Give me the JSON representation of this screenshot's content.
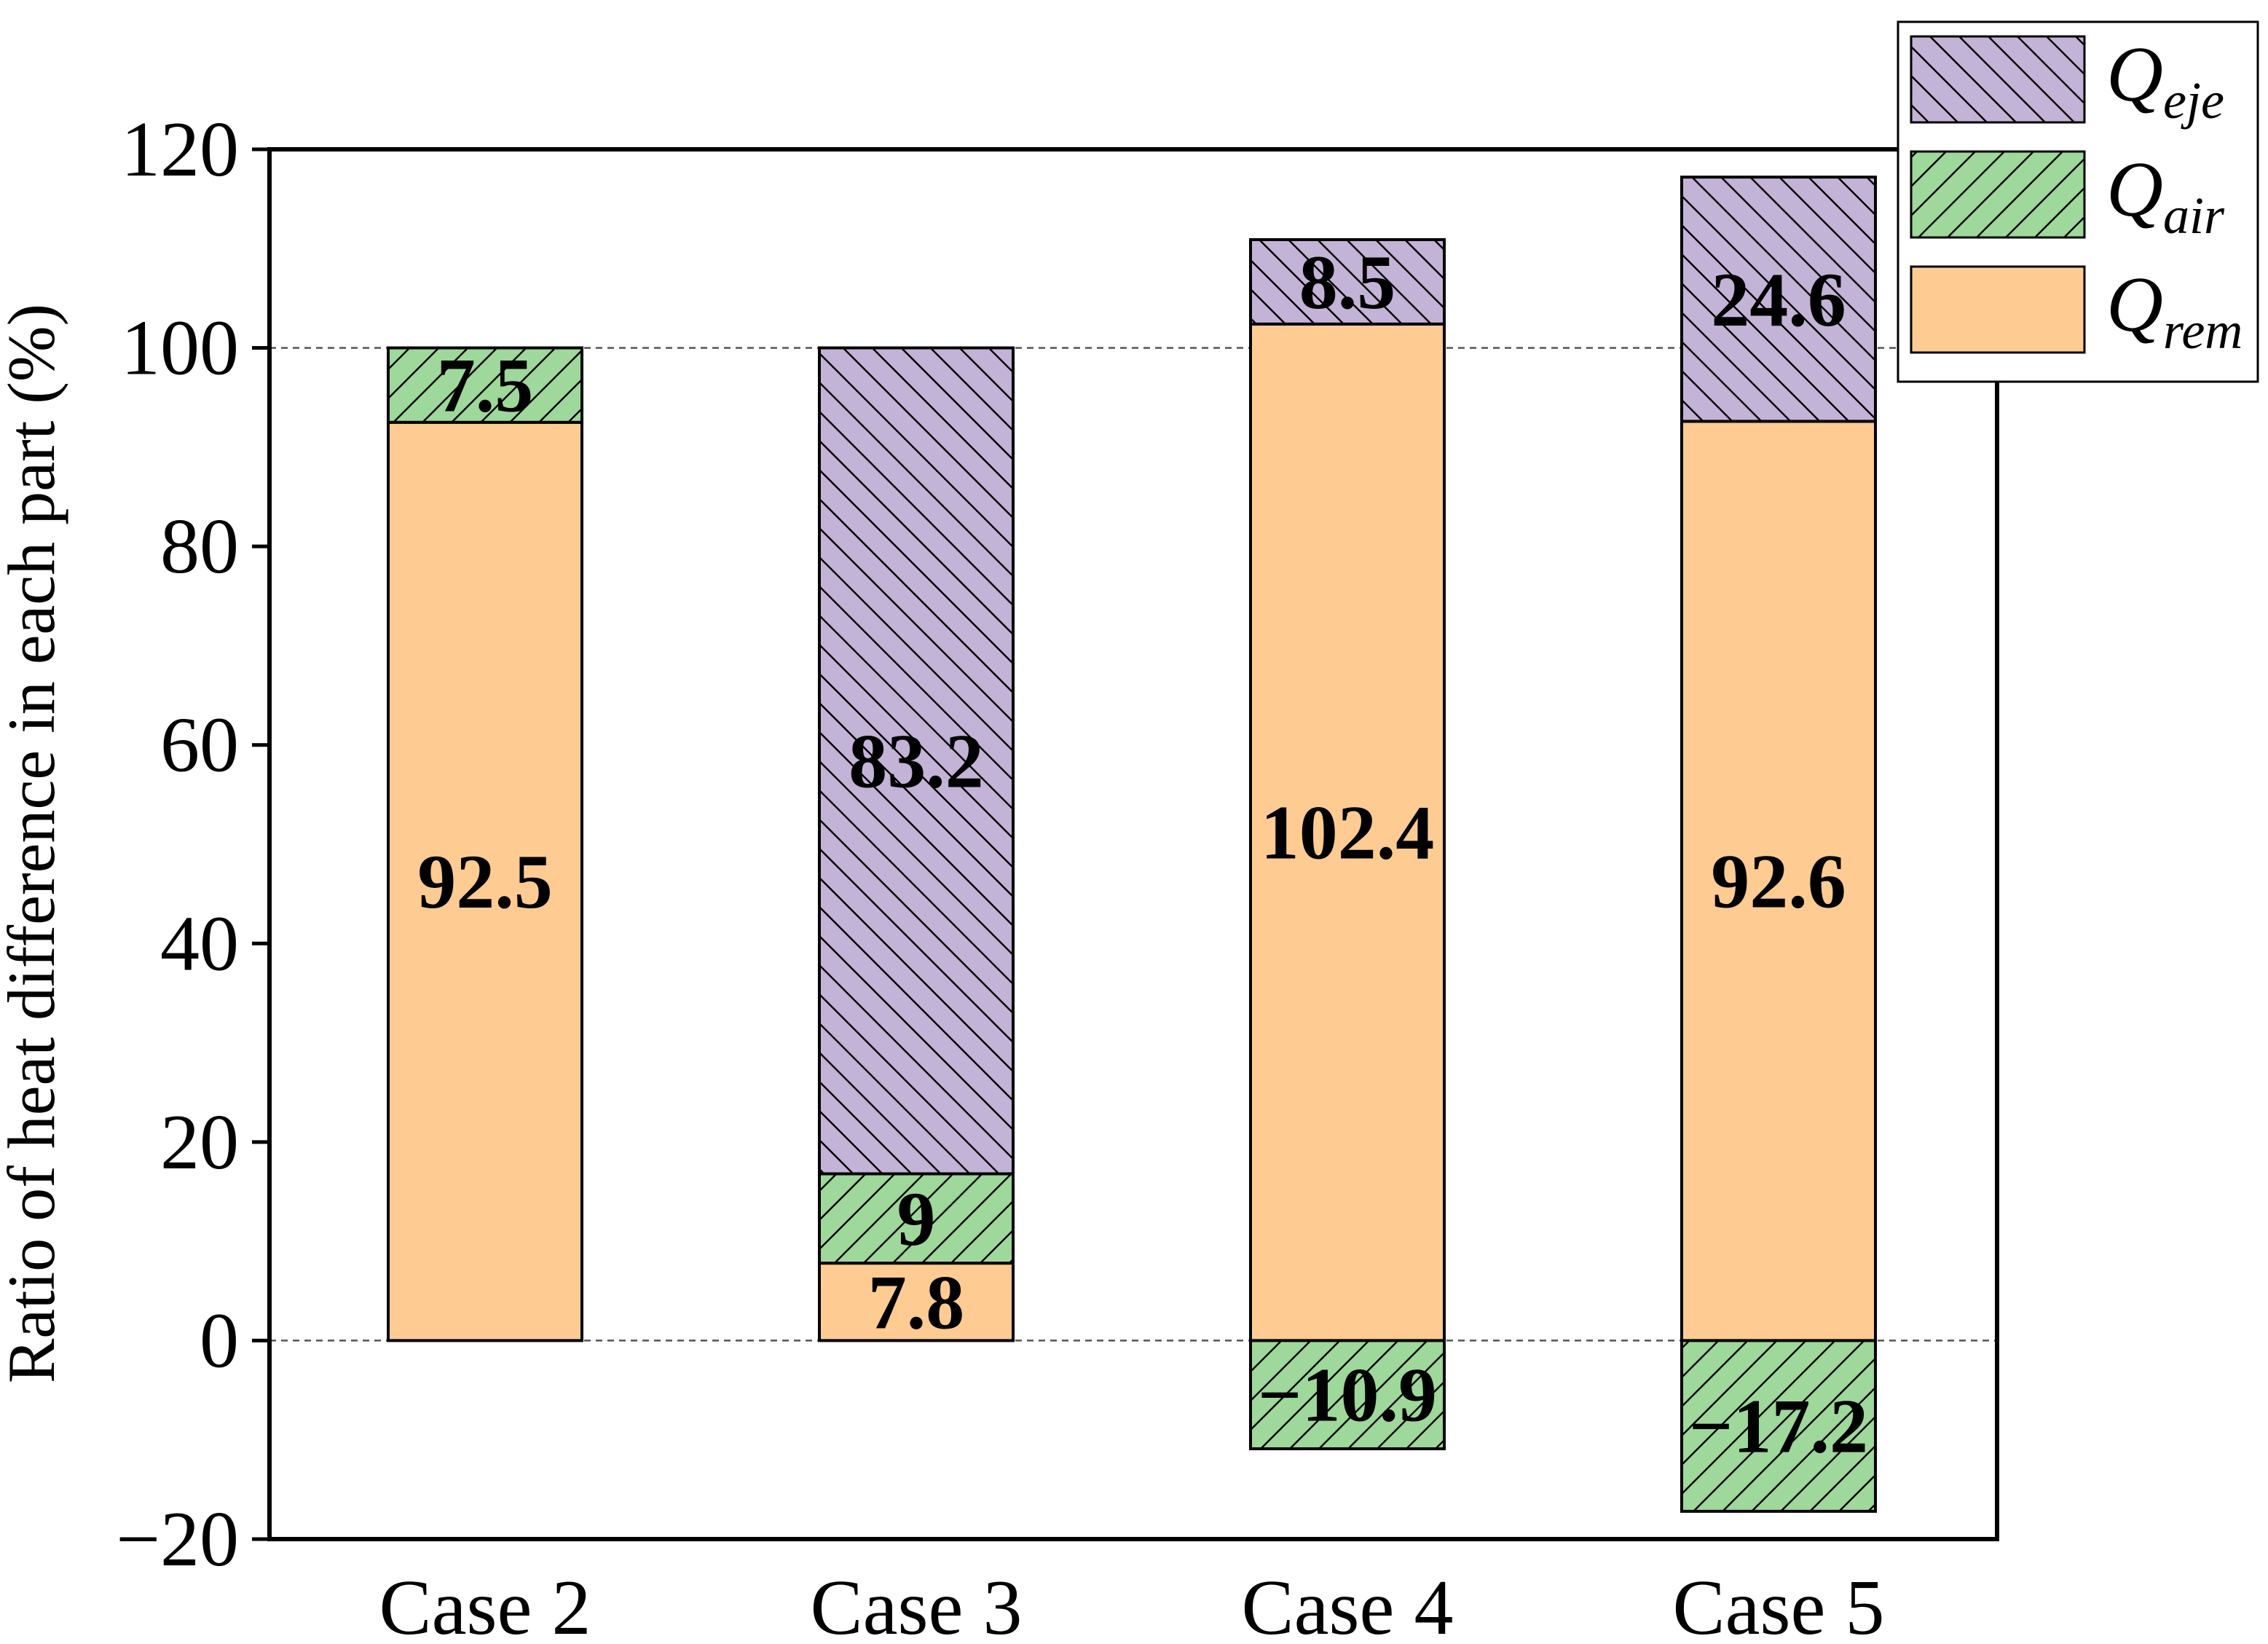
{
  "chart_data": {
    "type": "bar",
    "stacked": true,
    "title": "",
    "xlabel": "",
    "ylabel": "Ratio of heat difference in each part (%)",
    "categories": [
      "Case 2",
      "Case 3",
      "Case 4",
      "Case 5"
    ],
    "ylim": [
      -20,
      120
    ],
    "yticks": [
      -20,
      0,
      20,
      40,
      60,
      80,
      100,
      120
    ],
    "ytick_labels": [
      "−20",
      "0",
      "20",
      "40",
      "60",
      "80",
      "100",
      "120"
    ],
    "reference_lines": [
      0,
      100
    ],
    "series": [
      {
        "key": "rem",
        "name": "Q",
        "subscript": "rem",
        "color": "#FECB93",
        "hatch": "none",
        "values": [
          92.5,
          7.8,
          102.4,
          92.6
        ],
        "labels": [
          "92.5",
          "7.8",
          "102.4",
          "92.6"
        ]
      },
      {
        "key": "air",
        "name": "Q",
        "subscript": "air",
        "color": "#9ED89A",
        "hatch": "forward",
        "values": [
          7.5,
          9,
          -10.9,
          -17.2
        ],
        "labels": [
          "7.5",
          "9",
          "−10.9",
          "−17.2"
        ]
      },
      {
        "key": "eje",
        "name": "Q",
        "subscript": "eje",
        "color": "#C3B3D6",
        "hatch": "back",
        "values": [
          0,
          83.2,
          8.5,
          24.6
        ],
        "labels": [
          "",
          "83.2",
          "8.5",
          "24.6"
        ]
      }
    ],
    "legend": {
      "position": "top-right",
      "order": [
        "eje",
        "air",
        "rem"
      ]
    }
  }
}
